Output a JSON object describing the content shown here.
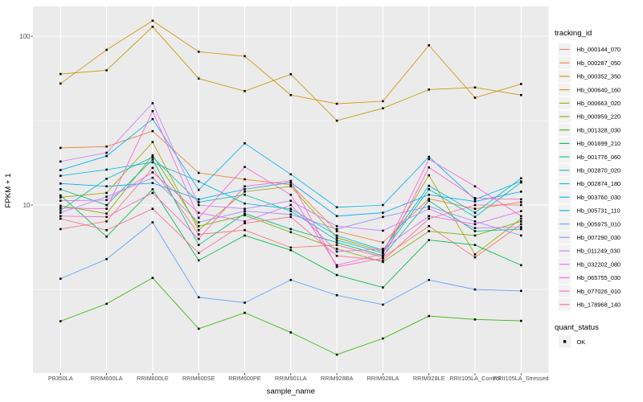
{
  "figure": {
    "background": "#FFFFFF",
    "panel_bg": "#EBEBEB",
    "grid_color": "#FFFFFF",
    "axis_text_color": "#4D4D4D",
    "tick_color": "#333333",
    "legend_key_bg": "#F2F2F2",
    "marker_color": "#000000"
  },
  "chart_data": {
    "type": "line",
    "title": "",
    "xlabel": "sample_name",
    "ylabel": "FPKM + 1",
    "y_scale": "log10",
    "ylim": [
      1.05,
      140
    ],
    "y_tick_labels": [
      "100",
      "10"
    ],
    "y_ticks": [
      100,
      10
    ],
    "y_minor_ticks": [
      31.62,
      3.162
    ],
    "grid": true,
    "legend": {
      "title": "tracking_id",
      "position": "right"
    },
    "quant_legend": {
      "title": "quant_status",
      "entries": [
        {
          "label": "OK",
          "shape": "filled-square",
          "color": "#000000"
        }
      ]
    },
    "marker": {
      "shape": "filled-square",
      "color": "#000000",
      "size": 2.6
    },
    "categories": [
      "PB350LA",
      "RRIM600LA",
      "RRIM600LE",
      "RRIM600SE",
      "RRIM600PE",
      "RRIM901LA",
      "RRIM928BA",
      "RRIM928LA",
      "RRIM928LE",
      "RRII105LA_Control",
      "RRII105LA_Stressed"
    ],
    "series": [
      {
        "tracking_id": "Hb_000144_070",
        "color": "#F8766D",
        "values": [
          7.2,
          8.0,
          16.6,
          6.7,
          7.1,
          5.6,
          5.8,
          4.9,
          7.5,
          4.9,
          7.7
        ]
      },
      {
        "tracking_id": "Hb_000287_050",
        "color": "#EA8331",
        "values": [
          21.8,
          22.2,
          27.4,
          15.5,
          14.2,
          13.2,
          7.0,
          6.0,
          10.9,
          9.5,
          10.4
        ]
      },
      {
        "tracking_id": "Hb_000352_350",
        "color": "#D89000",
        "values": [
          52.4,
          83.0,
          123.5,
          80.9,
          76.1,
          44.8,
          39.8,
          41.2,
          88.3,
          43.2,
          52.1
        ]
      },
      {
        "tracking_id": "Hb_000640_160",
        "color": "#C09B00",
        "values": [
          59.7,
          62.8,
          113.7,
          56.1,
          47.3,
          59.5,
          31.6,
          37.4,
          48.3,
          49.7,
          44.8
        ]
      },
      {
        "tracking_id": "Hb_000663_020",
        "color": "#A3A500",
        "values": [
          11.1,
          11.8,
          23.6,
          7.1,
          12.0,
          12.9,
          6.4,
          5.3,
          15.0,
          5.1,
          8.3
        ]
      },
      {
        "tracking_id": "Hb_000959_220",
        "color": "#7CAE00",
        "values": [
          9.9,
          8.9,
          19.7,
          7.5,
          8.7,
          6.9,
          5.5,
          4.6,
          7.0,
          6.6,
          8.0
        ]
      },
      {
        "tracking_id": "Hb_001328_030",
        "color": "#39B600",
        "values": [
          2.05,
          2.6,
          3.7,
          1.85,
          2.3,
          1.76,
          1.3,
          1.62,
          2.2,
          2.1,
          2.06
        ]
      },
      {
        "tracking_id": "Hb_001699_210",
        "color": "#00BB4E",
        "values": [
          11.4,
          6.5,
          12.4,
          4.7,
          6.6,
          5.4,
          3.85,
          3.25,
          6.2,
          5.8,
          4.4
        ]
      },
      {
        "tracking_id": "Hb_001776_060",
        "color": "#00C087",
        "values": [
          12.4,
          10.0,
          18.6,
          5.8,
          8.9,
          7.2,
          6.0,
          5.0,
          10.6,
          7.0,
          7.2
        ]
      },
      {
        "tracking_id": "Hb_002870_020",
        "color": "#00C0B8",
        "values": [
          9.3,
          14.3,
          19.2,
          10.4,
          11.5,
          9.2,
          6.2,
          5.2,
          12.4,
          8.5,
          13.6
        ]
      },
      {
        "tracking_id": "Hb_002874_180",
        "color": "#00BCD8",
        "values": [
          14.9,
          16.2,
          17.9,
          13.8,
          10.2,
          9.5,
          6.6,
          5.4,
          13.0,
          9.0,
          14.4
        ]
      },
      {
        "tracking_id": "Hb_003760_030",
        "color": "#00B4F0",
        "values": [
          16.1,
          19.5,
          32.3,
          12.3,
          23.2,
          15.2,
          9.7,
          10.0,
          19.3,
          10.8,
          13.8
        ]
      },
      {
        "tracking_id": "Hb_005731_110",
        "color": "#00A6FF",
        "values": [
          13.4,
          12.9,
          13.5,
          10.8,
          12.4,
          13.6,
          8.6,
          9.0,
          11.5,
          10.5,
          12.0
        ]
      },
      {
        "tracking_id": "Hb_005975_010",
        "color": "#5C9DFF",
        "values": [
          3.66,
          4.78,
          7.9,
          2.84,
          2.64,
          3.6,
          2.92,
          2.57,
          3.6,
          3.16,
          3.1
        ]
      },
      {
        "tracking_id": "Hb_007290_030",
        "color": "#9590FF",
        "values": [
          9.0,
          11.2,
          14.5,
          7.9,
          9.2,
          8.8,
          7.2,
          8.5,
          9.8,
          8.0,
          6.6
        ]
      },
      {
        "tracking_id": "Hb_011249_030",
        "color": "#C77CFF",
        "values": [
          18.1,
          20.4,
          40.1,
          10.0,
          9.5,
          10.6,
          7.5,
          7.05,
          9.5,
          7.3,
          7.4
        ]
      },
      {
        "tracking_id": "Hb_032202_080",
        "color": "#E76BF3",
        "values": [
          10.6,
          10.7,
          15.6,
          9.0,
          8.0,
          10.0,
          5.3,
          5.5,
          8.6,
          7.7,
          9.2
        ]
      },
      {
        "tracking_id": "Hb_065755_030",
        "color": "#FA62DB",
        "values": [
          9.6,
          9.5,
          36.0,
          8.4,
          16.8,
          11.5,
          4.4,
          5.15,
          18.7,
          12.9,
          8.6
        ]
      },
      {
        "tracking_id": "Hb_077026_010",
        "color": "#FF61C7",
        "values": [
          8.6,
          8.5,
          11.8,
          6.3,
          12.9,
          13.9,
          4.3,
          4.85,
          16.7,
          11.0,
          10.8
        ]
      },
      {
        "tracking_id": "Hb_178968_140",
        "color": "#FF6B96",
        "values": [
          8.3,
          7.1,
          9.5,
          5.2,
          7.8,
          8.5,
          5.0,
          4.7,
          8.3,
          10.0,
          10.0
        ]
      }
    ]
  }
}
